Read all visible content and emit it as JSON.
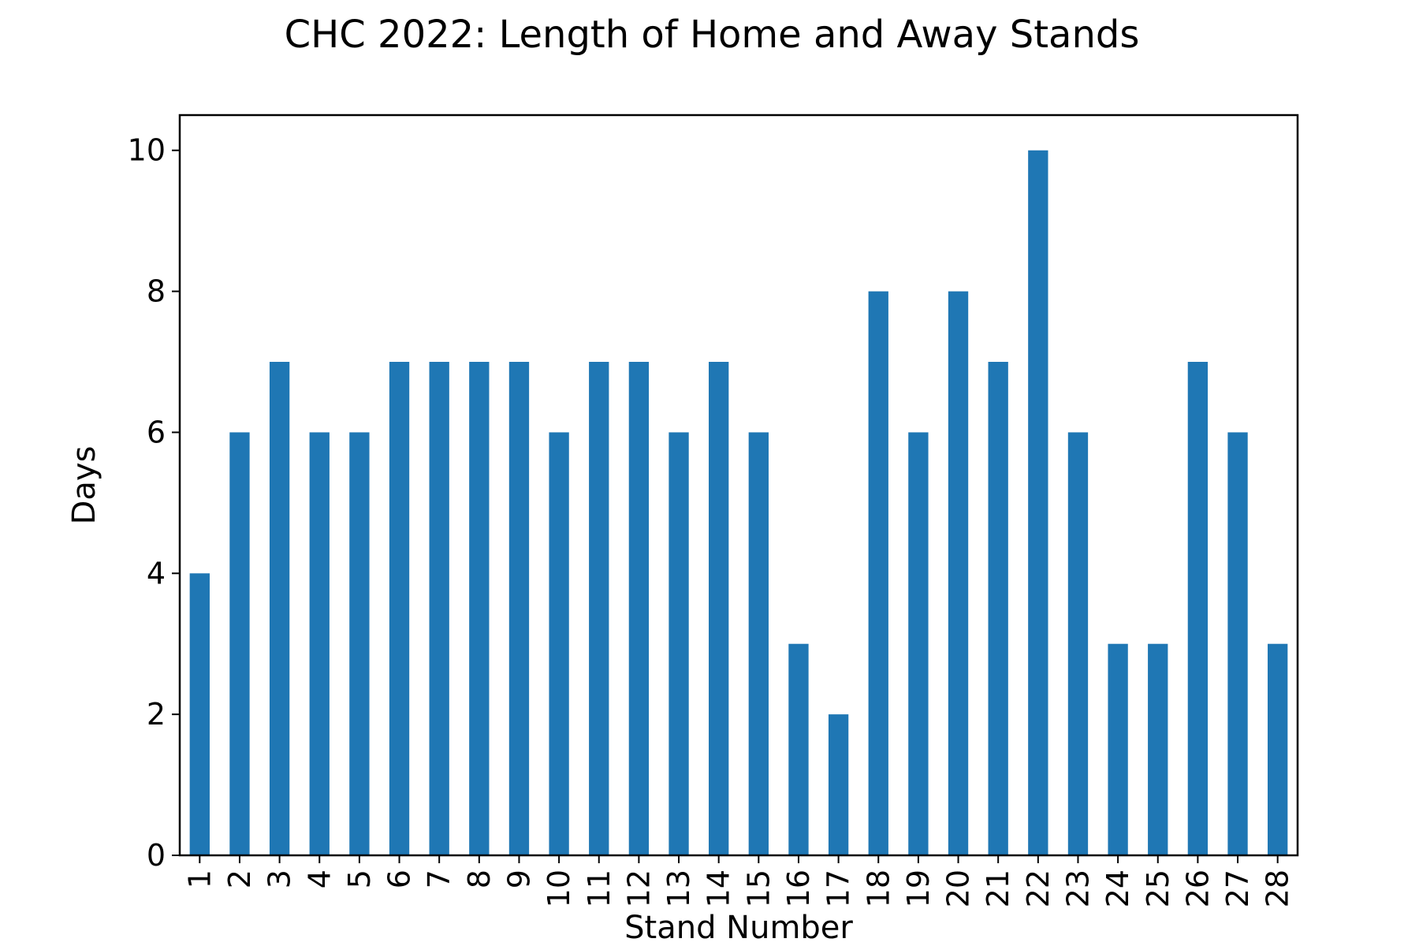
{
  "chart_data": {
    "type": "bar",
    "title": "CHC 2022: Length of Home and Away Stands",
    "xlabel": "Stand Number",
    "ylabel": "Days",
    "categories": [
      "1",
      "2",
      "3",
      "4",
      "5",
      "6",
      "7",
      "8",
      "9",
      "10",
      "11",
      "12",
      "13",
      "14",
      "15",
      "16",
      "17",
      "18",
      "19",
      "20",
      "21",
      "22",
      "23",
      "24",
      "25",
      "26",
      "27",
      "28"
    ],
    "values": [
      4,
      6,
      7,
      6,
      6,
      7,
      7,
      7,
      7,
      6,
      7,
      7,
      6,
      7,
      6,
      3,
      2,
      8,
      6,
      8,
      7,
      10,
      6,
      3,
      3,
      7,
      6,
      3
    ],
    "ylim": [
      0,
      10.5
    ],
    "yticks": [
      0,
      2,
      4,
      6,
      8,
      10
    ],
    "bar_color": "#1f77b4",
    "grid": false,
    "legend": "none"
  }
}
